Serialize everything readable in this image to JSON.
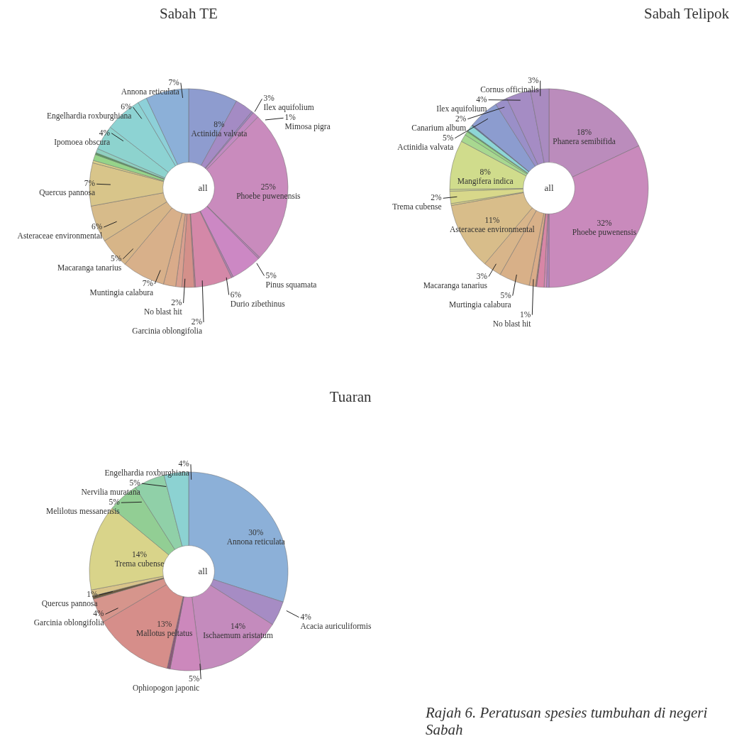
{
  "chart_data": [
    {
      "type": "donut",
      "title": "Sabah TE",
      "annotations": [
        "all"
      ],
      "categories": [
        "Actinidia valvata",
        "Ilex aquifolium",
        null,
        "Mimosa pigra",
        "Phoebe puwenensis",
        null,
        "Pinus squamata",
        null,
        "Durio zibethinus",
        null,
        "Garcinia oblongifolia",
        null,
        "No blast hit",
        "Muntingia calabura",
        "Macaranga tanarius",
        "Asteraceae environmental",
        "Quercus pannosa",
        null,
        null,
        null,
        null,
        "Ipomoea obscura",
        "Engelhardia roxburghiana",
        null,
        "Annona reticulata"
      ],
      "values": [
        8,
        3,
        0.3,
        1,
        25,
        0.3,
        5,
        0.3,
        6,
        0.2,
        2,
        1,
        2,
        7,
        5,
        6,
        7,
        0.4,
        1,
        0.3,
        0.7,
        4,
        6,
        1.5,
        7
      ],
      "value_labels": [
        "8%",
        "3%",
        null,
        "1%",
        "25%",
        null,
        "5%",
        null,
        "6%",
        null,
        "2%",
        null,
        "2%",
        "7%",
        "5%",
        "6%",
        "7%",
        null,
        null,
        null,
        null,
        "4%",
        "6%",
        null,
        "7%"
      ],
      "colors": [
        "#8e9ccf",
        "#a48bc4",
        "#9a85c0",
        "#c08ac2",
        "#c98bbd",
        "#b07fb0",
        "#cc88c4",
        "#b07fb0",
        "#d488a8",
        "#c07a90",
        "#d4908a",
        "#d9a08f",
        "#d9ab8a",
        "#d8b08a",
        "#d7b588",
        "#d7bb8a",
        "#d8c58a",
        "#d9d08a",
        "#96d48a",
        "#5a9a60",
        "#8fd0c0",
        "#8dd3ce",
        "#8dd3d3",
        "#8dd0d8",
        "#8cb0d8"
      ]
    },
    {
      "type": "donut",
      "title": "Sabah Telipok",
      "annotations": [
        "all"
      ],
      "categories": [
        "Phanera semibifida",
        "Phoebe puwenensis",
        null,
        null,
        null,
        null,
        "No blast hit",
        "Murtingia calabura",
        "Macaranga tanarius",
        "Asteraceae environmental",
        null,
        "Trema cubense",
        null,
        "Mangifera indica",
        null,
        null,
        null,
        null,
        null,
        "Actinidia valvata",
        "Canarium album",
        "Ilex aquifolium",
        "Cornus officinalis"
      ],
      "values": [
        18,
        32,
        0.4,
        0.4,
        1.2,
        0.2,
        1,
        5,
        3,
        11,
        0.3,
        2,
        0.3,
        8,
        1.2,
        0.6,
        0.2,
        1,
        0.2,
        5,
        2,
        4,
        3
      ],
      "value_labels": [
        "18%",
        "32%",
        null,
        null,
        null,
        null,
        "1%",
        "5%",
        "3%",
        "11%",
        null,
        "2%",
        null,
        "8%",
        null,
        null,
        null,
        null,
        null,
        "5%",
        "2%",
        "4%",
        "3%"
      ],
      "colors": [
        "#bb8cbc",
        "#c98abc",
        "#b485c0",
        "#d08ab8",
        "#d886a6",
        "#9a6f6f",
        "#d9ab88",
        "#d8b088",
        "#d8b58a",
        "#d8bd8a",
        "#d9d08a",
        "#d8d88a",
        "#d0d890",
        "#d0dc8c",
        "#a8d890",
        "#98d48a",
        "#5a9a60",
        "#8dd6d6",
        "#5a6a9a",
        "#8c9ccf",
        "#9a8fc8",
        "#a58cc4",
        "#a98bc0"
      ]
    },
    {
      "type": "donut",
      "title": "Tuaran",
      "annotations": [
        "all",
        "Rajah 6. Peratusan spesies tumbuhan di negeri Sabah"
      ],
      "categories": [
        "Annona reticulata",
        "Acacia auriculiformis",
        "Ischaemum aristatum",
        "Ophiopogon japonic",
        null,
        "Mallotus peltatus",
        "Garcinia oblongifolia",
        null,
        "Quercus pannosa",
        "Trema cubense",
        "Melilotus messanensis",
        "Nervilia muratana",
        "Engelhardia roxburghiana"
      ],
      "values": [
        30,
        4,
        14,
        5,
        0.5,
        13,
        4,
        0.5,
        1,
        14,
        5,
        5,
        4
      ],
      "value_labels": [
        "30%",
        "4%",
        "14%",
        "5%",
        null,
        "13%",
        "4%",
        null,
        "1%",
        "14%",
        "5%",
        "5%",
        "4%"
      ],
      "colors": [
        "#8cb0d8",
        "#a68cc4",
        "#c48bbd",
        "#cc88bc",
        "#8a5a7a",
        "#d68e8a",
        "#d6958c",
        "#6a5a40",
        "#d9c48a",
        "#d9d48a",
        "#92ce94",
        "#90d0a8",
        "#8cd2d2"
      ]
    }
  ]
}
